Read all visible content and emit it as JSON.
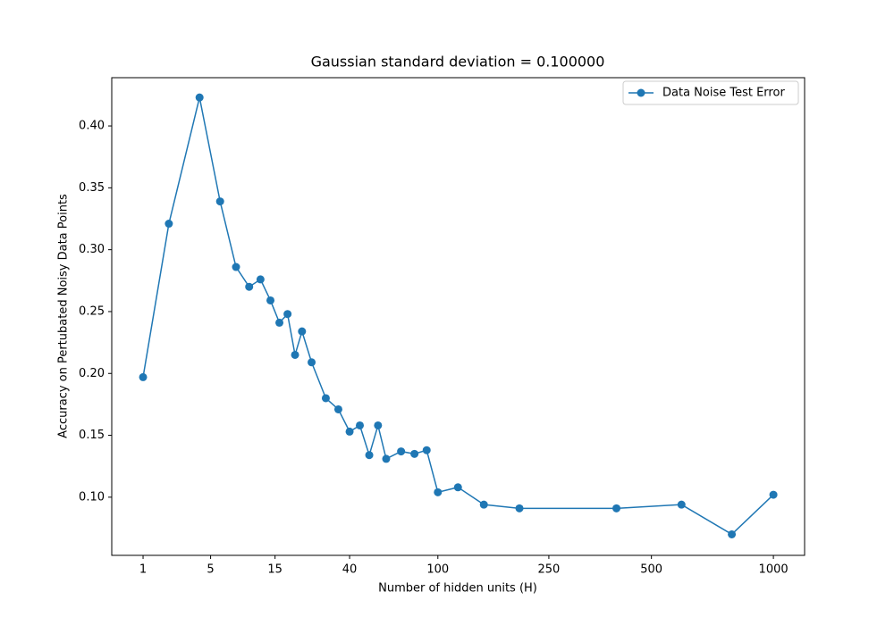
{
  "chart_data": {
    "type": "line",
    "title": "Gaussian standard deviation = 0.100000",
    "xlabel": "Number of hidden units (H)",
    "ylabel": "Accuracy on Pertubated Noisy Data Points",
    "xscale": "power",
    "xpower": 0.25,
    "x": [
      1,
      2,
      4,
      6,
      8,
      10,
      12,
      14,
      16,
      18,
      20,
      22,
      25,
      30,
      35,
      40,
      45,
      50,
      55,
      60,
      70,
      80,
      90,
      100,
      120,
      150,
      200,
      400,
      600,
      800,
      1000
    ],
    "series": [
      {
        "name": "Data Noise Test Error",
        "color": "#1f77b4",
        "values": [
          0.197,
          0.321,
          0.423,
          0.339,
          0.286,
          0.27,
          0.276,
          0.259,
          0.241,
          0.248,
          0.215,
          0.234,
          0.209,
          0.18,
          0.171,
          0.153,
          0.158,
          0.134,
          0.158,
          0.131,
          0.137,
          0.135,
          0.138,
          0.104,
          0.108,
          0.094,
          0.091,
          0.091,
          0.094,
          0.07,
          0.102
        ]
      }
    ],
    "xlim": [
      0.352,
      1173
    ],
    "ylim": [
      0.053,
      0.439
    ],
    "xticks": [
      1,
      5,
      15,
      40,
      100,
      250,
      500,
      1000
    ],
    "yticks": [
      {
        "value": 0.1,
        "label": "0.10"
      },
      {
        "value": 0.15,
        "label": "0.15"
      },
      {
        "value": 0.2,
        "label": "0.20"
      },
      {
        "value": 0.25,
        "label": "0.25"
      },
      {
        "value": 0.3,
        "label": "0.30"
      },
      {
        "value": 0.35,
        "label": "0.35"
      },
      {
        "value": 0.4,
        "label": "0.40"
      }
    ],
    "legend": "upper right",
    "grid": false
  }
}
